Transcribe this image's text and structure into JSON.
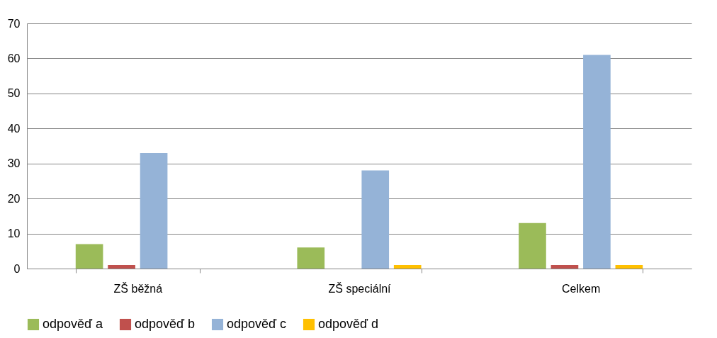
{
  "chart_data": {
    "type": "bar",
    "categories": [
      "ZŠ běžná",
      "ZŠ speciální",
      "Celkem"
    ],
    "series": [
      {
        "name": "odpověď a",
        "color": "#9bbb59",
        "values": [
          7,
          6,
          13
        ]
      },
      {
        "name": "odpověď b",
        "color": "#c0504d",
        "values": [
          1,
          0,
          1
        ]
      },
      {
        "name": "odpověď c",
        "color": "#95b3d7",
        "values": [
          33,
          28,
          61
        ]
      },
      {
        "name": "odpověď d",
        "color": "#ffc000",
        "values": [
          0,
          1,
          1
        ]
      }
    ],
    "ylim": [
      0,
      70
    ],
    "yticks": [
      0,
      10,
      20,
      30,
      40,
      50,
      60,
      70
    ],
    "grid": "y",
    "legend": "bottom"
  }
}
